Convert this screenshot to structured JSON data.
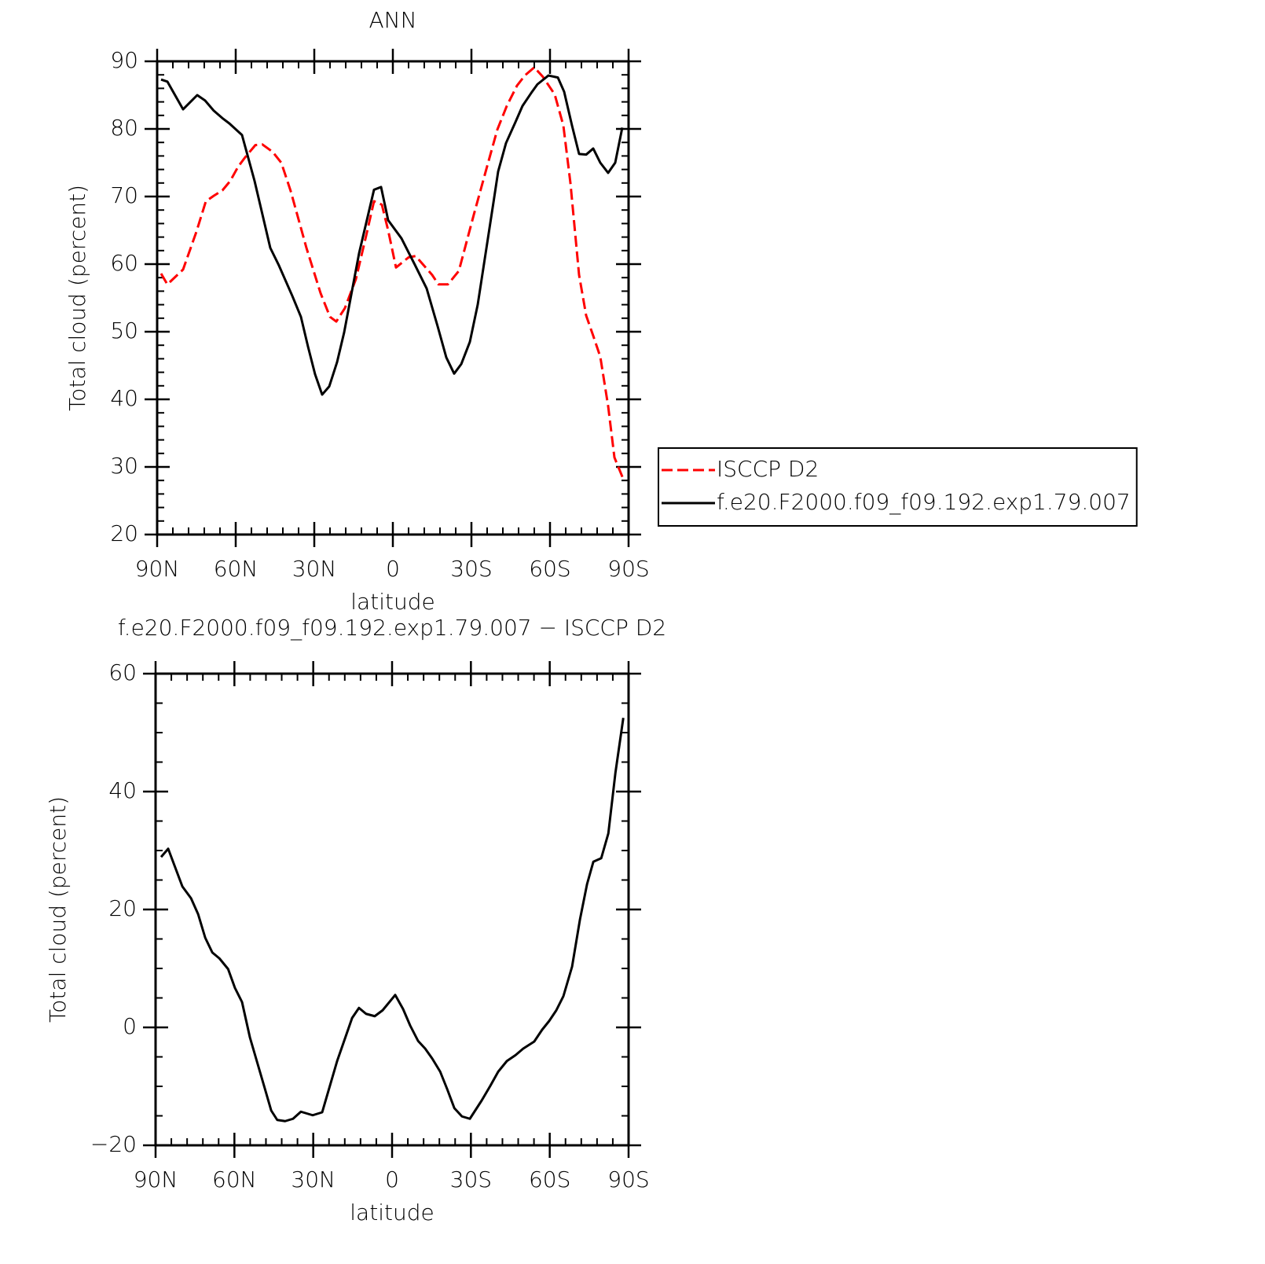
{
  "chart_data": [
    {
      "type": "line",
      "title": "ANN",
      "xlabel": "latitude",
      "ylabel": "Total cloud (percent)",
      "xlim": [
        90,
        -90
      ],
      "xticks": [
        {
          "value": 90,
          "label": "90N"
        },
        {
          "value": 60,
          "label": "60N"
        },
        {
          "value": 30,
          "label": "30N"
        },
        0,
        {
          "value": -30,
          "label": "30S"
        },
        {
          "value": -60,
          "label": "60S"
        },
        {
          "value": -90,
          "label": "90S"
        }
      ],
      "ylim": [
        20,
        90
      ],
      "yticks": [
        20,
        30,
        40,
        50,
        60,
        70,
        80,
        90
      ],
      "legend": "right",
      "series": [
        {
          "name": "ISCCP D2",
          "color": "#ff0000",
          "linestyle": "dashed",
          "x": [
            88.5,
            86.1,
            80.1,
            75,
            71.4,
            68.4,
            65.1,
            62.1,
            59.1,
            56.4,
            52.5,
            49.8,
            45.9,
            42.6,
            39,
            33,
            27.6,
            24,
            21.6,
            18.3,
            14.1,
            10.2,
            7.2,
            4.2,
            1.8,
            -1.2,
            -6,
            -8.7,
            -15,
            -17.4,
            -21,
            -25.2,
            -30.9,
            -36.3,
            -39.9,
            -43.5,
            -47.4,
            -50.4,
            -54,
            -57.3,
            -61.8,
            -65.1,
            -67.8,
            -71.1,
            -73.8,
            -76.5,
            -79.2,
            -82.2,
            -84.6,
            -88.2
          ],
          "values": [
            58.6,
            57.0,
            59.2,
            64.8,
            69.3,
            70.1,
            70.9,
            72.3,
            74.4,
            75.8,
            77.6,
            77.7,
            76.6,
            75.0,
            70.8,
            62.4,
            55.7,
            52.2,
            51.5,
            53.5,
            57.8,
            64.2,
            69.3,
            68.8,
            65.0,
            59.5,
            61.0,
            61.2,
            58.4,
            57.0,
            57.0,
            59.0,
            67.3,
            74.9,
            79.9,
            83.4,
            86.4,
            87.9,
            89.1,
            87.7,
            85.1,
            80.5,
            72.0,
            58.4,
            52.4,
            49.4,
            46.3,
            39.0,
            31.4,
            28.0
          ]
        },
        {
          "name": "f.e20.F2000.f09_f09.192.exp1.79.007",
          "color": "#000000",
          "linestyle": "solid",
          "x": [
            88.5,
            86.1,
            80.1,
            74.7,
            71.7,
            68.4,
            64.8,
            62.4,
            57.6,
            52.8,
            46.8,
            43.5,
            38.4,
            35.1,
            32.4,
            29.7,
            27,
            24.3,
            21.3,
            18.6,
            12.9,
            7.2,
            4.5,
            1.8,
            -3.3,
            -8.4,
            -12.9,
            -17.1,
            -20.4,
            -23.4,
            -26.1,
            -29.4,
            -32.4,
            -38.4,
            -40.2,
            -43.2,
            -46.8,
            -49.5,
            -52.8,
            -55.2,
            -59.4,
            -63,
            -65.4,
            -68.4,
            -71.1,
            -73.8,
            -76.5,
            -79.2,
            -82.2,
            -84.9,
            -87.6
          ],
          "values": [
            87.3,
            87.0,
            82.9,
            85.0,
            84.2,
            82.7,
            81.5,
            80.8,
            79.1,
            72.3,
            62.4,
            59.8,
            55.3,
            52.2,
            47.8,
            43.7,
            40.7,
            41.9,
            45.5,
            49.9,
            61.6,
            71.0,
            71.4,
            66.5,
            63.8,
            59.9,
            56.4,
            50.8,
            46.2,
            43.8,
            45.2,
            48.5,
            54.0,
            69.1,
            73.7,
            77.9,
            81.0,
            83.4,
            85.3,
            86.6,
            87.9,
            87.6,
            85.5,
            80.5,
            76.3,
            76.2,
            77.1,
            75.0,
            73.5,
            75.0,
            80.2
          ]
        }
      ]
    },
    {
      "type": "line",
      "title": "f.e20.F2000.f09_f09.192.exp1.79.007 − ISCCP D2",
      "xlabel": "latitude",
      "ylabel": "Total cloud (percent)",
      "xlim": [
        90,
        -90
      ],
      "xticks": [
        {
          "value": 90,
          "label": "90N"
        },
        {
          "value": 60,
          "label": "60N"
        },
        {
          "value": 30,
          "label": "30N"
        },
        0,
        {
          "value": -30,
          "label": "30S"
        },
        {
          "value": -60,
          "label": "60S"
        },
        {
          "value": -90,
          "label": "90S"
        }
      ],
      "ylim": [
        -20,
        60
      ],
      "yticks": [
        {
          "value": -20,
          "label": "−20"
        },
        0,
        20,
        40,
        60
      ],
      "series": [
        {
          "color": "#000000",
          "linestyle": "solid",
          "x": [
            87.9,
            85.2,
            79.8,
            76.5,
            73.8,
            71.1,
            68.4,
            65.7,
            62.4,
            59.8,
            57.1,
            54.1,
            48.4,
            46.0,
            43.7,
            40.7,
            37.7,
            34.7,
            30.2,
            26.6,
            20.9,
            15.2,
            12.6,
            9.9,
            6.6,
            3.6,
            -1.2,
            -4.2,
            -6.9,
            -9.9,
            -12.6,
            -15.3,
            -18.3,
            -21.0,
            -23.7,
            -26.6,
            -29.6,
            -34.1,
            -37.4,
            -40.4,
            -43.7,
            -47.0,
            -49.9,
            -54.1,
            -57.1,
            -59.8,
            -62.5,
            -65.2,
            -68.5,
            -71.5,
            -74.2,
            -76.6,
            -79.6,
            -82.3,
            -85.0,
            -88.0
          ],
          "values": [
            28.9,
            30.3,
            23.9,
            21.9,
            19.2,
            15.2,
            12.7,
            11.7,
            9.9,
            6.7,
            4.3,
            -1.7,
            -10.4,
            -14.1,
            -15.7,
            -15.9,
            -15.5,
            -14.3,
            -14.9,
            -14.4,
            -5.7,
            1.6,
            3.3,
            2.3,
            1.9,
            2.9,
            5.5,
            3.1,
            0.3,
            -2.3,
            -3.6,
            -5.3,
            -7.5,
            -10.5,
            -13.7,
            -15.1,
            -15.5,
            -12.4,
            -9.9,
            -7.5,
            -5.7,
            -4.7,
            -3.6,
            -2.4,
            -0.4,
            1.1,
            2.9,
            5.3,
            10.3,
            18.3,
            24.3,
            28.1,
            28.7,
            32.9,
            43.2,
            52.5
          ]
        }
      ]
    }
  ]
}
